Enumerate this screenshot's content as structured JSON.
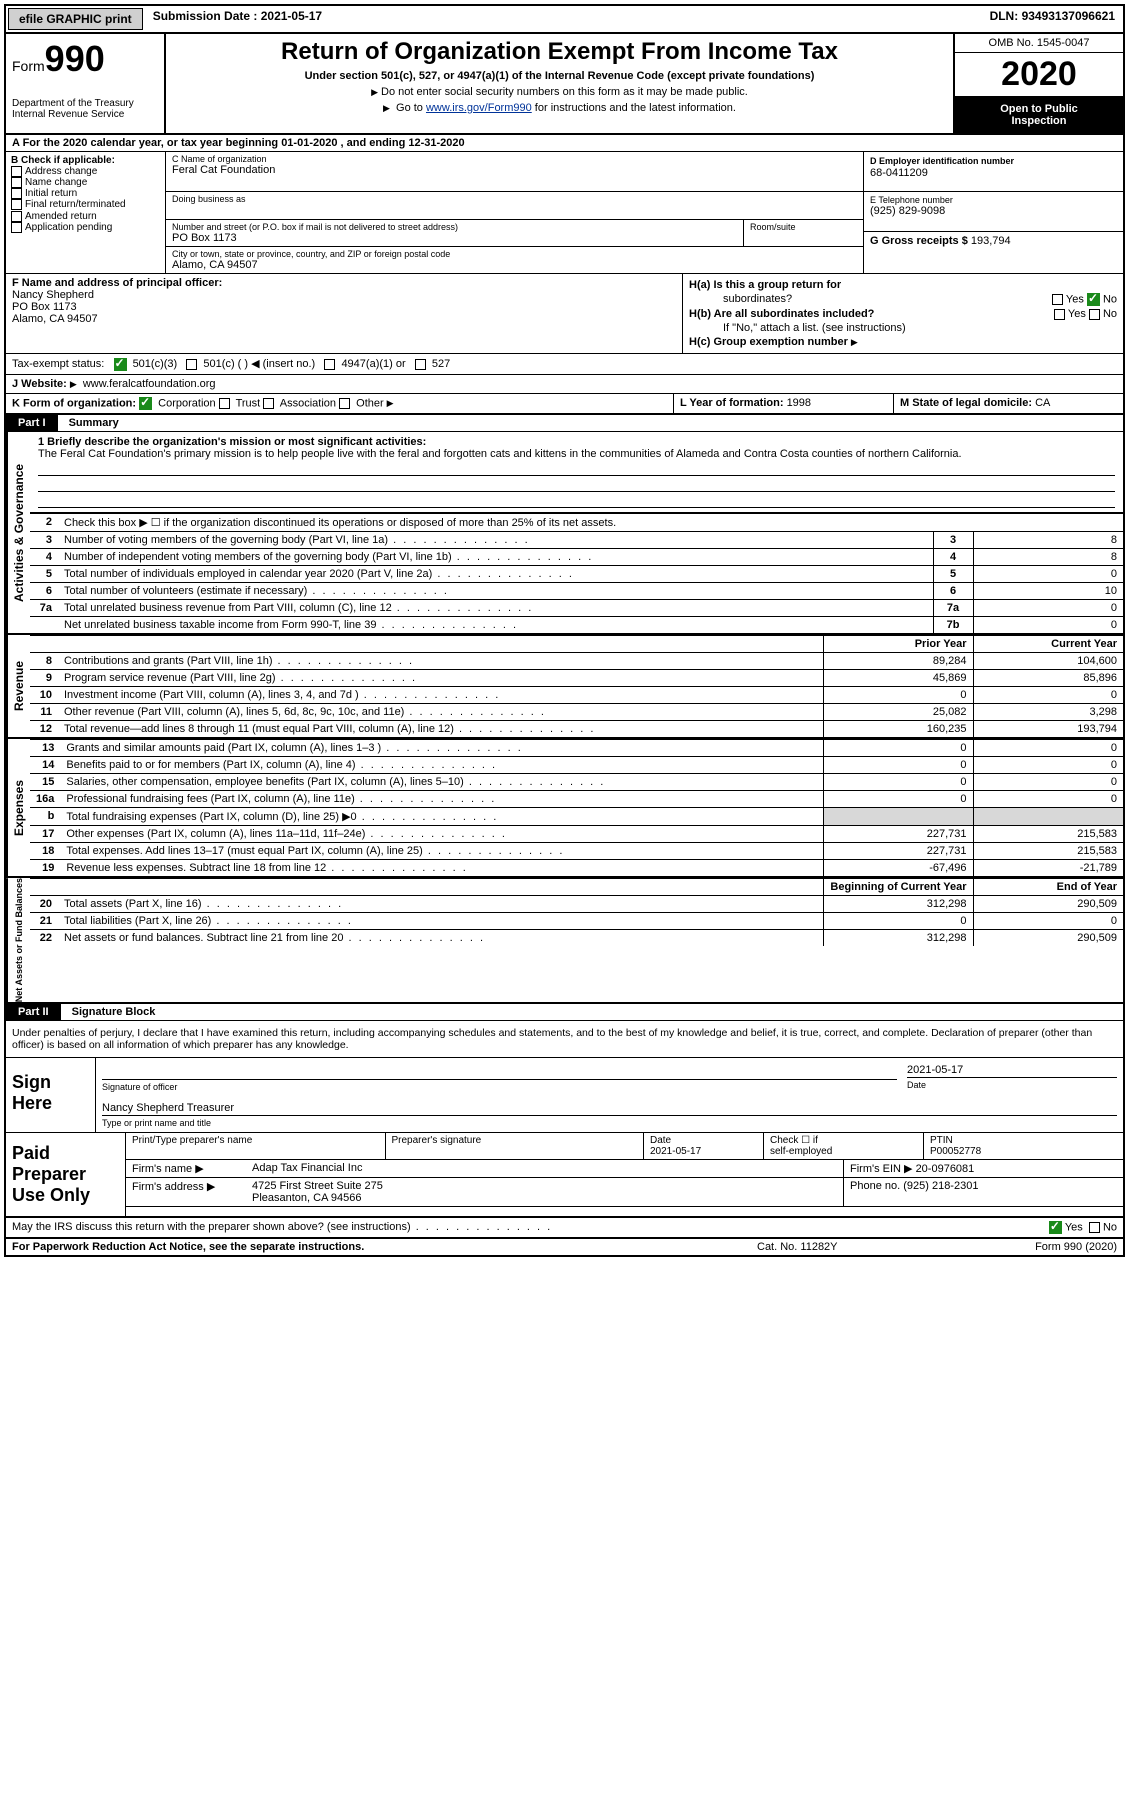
{
  "topbar": {
    "efile": "efile GRAPHIC print",
    "submission_label": "Submission Date : ",
    "submission_date": "2021-05-17",
    "dln_label": "DLN: ",
    "dln": "93493137096621"
  },
  "header": {
    "form_word": "Form",
    "form_num": "990",
    "dept1": "Department of the Treasury",
    "dept2": "Internal Revenue Service",
    "title": "Return of Organization Exempt From Income Tax",
    "subtitle": "Under section 501(c), 527, or 4947(a)(1) of the Internal Revenue Code (except private foundations)",
    "note1": "Do not enter social security numbers on this form as it may be made public.",
    "note2_pre": "Go to ",
    "note2_link": "www.irs.gov/Form990",
    "note2_post": " for instructions and the latest information.",
    "omb": "OMB No. 1545-0047",
    "year": "2020",
    "open1": "Open to Public",
    "open2": "Inspection"
  },
  "line_a": "A  For the 2020 calendar year, or tax year beginning 01-01-2020     , and ending 12-31-2020",
  "box_b": {
    "label": "B Check if applicable:",
    "opts": [
      "Address change",
      "Name change",
      "Initial return",
      "Final return/terminated",
      "Amended return",
      "Application pending"
    ]
  },
  "box_c": {
    "lbl_name": "C Name of organization",
    "org_name": "Feral Cat Foundation",
    "lbl_dba": "Doing business as",
    "lbl_street": "Number and street (or P.O. box if mail is not delivered to street address)",
    "street": "PO Box 1173",
    "lbl_room": "Room/suite",
    "lbl_city": "City or town, state or province, country, and ZIP or foreign postal code",
    "city": "Alamo, CA  94507"
  },
  "box_d": {
    "lbl": "D Employer identification number",
    "ein": "68-0411209"
  },
  "box_e": {
    "lbl": "E Telephone number",
    "phone": "(925) 829-9098"
  },
  "box_g": {
    "lbl": "G Gross receipts $ ",
    "val": "193,794"
  },
  "box_f": {
    "lbl": "F  Name and address of principal officer:",
    "name": "Nancy Shepherd",
    "street": "PO Box 1173",
    "city": "Alamo, CA  94507"
  },
  "box_h": {
    "ha1": "H(a)  Is this a group return for",
    "ha2": "subordinates?",
    "hb1": "H(b)  Are all subordinates included?",
    "hb_note": "If \"No,\" attach a list. (see instructions)",
    "hc": "H(c)  Group exemption number",
    "yes": "Yes",
    "no": "No"
  },
  "tax_status": {
    "lbl": "Tax-exempt status:",
    "c3": "501(c)(3)",
    "c": "501(c) (  )",
    "insert": "(insert no.)",
    "a1": "4947(a)(1) or",
    "s527": "527"
  },
  "row_j": {
    "lbl": "J Website:",
    "val": "www.feralcatfoundation.org"
  },
  "row_k": {
    "lbl": "K Form of organization:",
    "corp": "Corporation",
    "trust": "Trust",
    "assoc": "Association",
    "other": "Other",
    "l_lbl": "L Year of formation: ",
    "l_val": "1998",
    "m_lbl": "M State of legal domicile: ",
    "m_val": "CA"
  },
  "part1": {
    "hdr": "Part I",
    "title": "Summary"
  },
  "mission": {
    "lbl": "1  Briefly describe the organization's mission or most significant activities:",
    "text": "The Feral Cat Foundation's primary mission is to help people live with the feral and forgotten cats and kittens in the communities of Alameda and Contra Costa counties of northern California."
  },
  "line2": "Check this box ▶ ☐ if the organization discontinued its operations or disposed of more than 25% of its net assets.",
  "gov_rows": [
    {
      "n": "3",
      "d": "Number of voting members of the governing body (Part VI, line 1a)",
      "box": "3",
      "v": "8"
    },
    {
      "n": "4",
      "d": "Number of independent voting members of the governing body (Part VI, line 1b)",
      "box": "4",
      "v": "8"
    },
    {
      "n": "5",
      "d": "Total number of individuals employed in calendar year 2020 (Part V, line 2a)",
      "box": "5",
      "v": "0"
    },
    {
      "n": "6",
      "d": "Total number of volunteers (estimate if necessary)",
      "box": "6",
      "v": "10"
    },
    {
      "n": "7a",
      "d": "Total unrelated business revenue from Part VIII, column (C), line 12",
      "box": "7a",
      "v": "0"
    },
    {
      "n": "",
      "d": "Net unrelated business taxable income from Form 990-T, line 39",
      "box": "7b",
      "v": "0"
    }
  ],
  "col_hdrs": {
    "prior": "Prior Year",
    "current": "Current Year",
    "begin": "Beginning of Current Year",
    "end": "End of Year"
  },
  "revenue_rows": [
    {
      "n": "8",
      "d": "Contributions and grants (Part VIII, line 1h)",
      "p": "89,284",
      "c": "104,600"
    },
    {
      "n": "9",
      "d": "Program service revenue (Part VIII, line 2g)",
      "p": "45,869",
      "c": "85,896"
    },
    {
      "n": "10",
      "d": "Investment income (Part VIII, column (A), lines 3, 4, and 7d )",
      "p": "0",
      "c": "0"
    },
    {
      "n": "11",
      "d": "Other revenue (Part VIII, column (A), lines 5, 6d, 8c, 9c, 10c, and 11e)",
      "p": "25,082",
      "c": "3,298"
    },
    {
      "n": "12",
      "d": "Total revenue—add lines 8 through 11 (must equal Part VIII, column (A), line 12)",
      "p": "160,235",
      "c": "193,794"
    }
  ],
  "expense_rows": [
    {
      "n": "13",
      "d": "Grants and similar amounts paid (Part IX, column (A), lines 1–3 )",
      "p": "0",
      "c": "0"
    },
    {
      "n": "14",
      "d": "Benefits paid to or for members (Part IX, column (A), line 4)",
      "p": "0",
      "c": "0"
    },
    {
      "n": "15",
      "d": "Salaries, other compensation, employee benefits (Part IX, column (A), lines 5–10)",
      "p": "0",
      "c": "0"
    },
    {
      "n": "16a",
      "d": "Professional fundraising fees (Part IX, column (A), line 11e)",
      "p": "0",
      "c": "0"
    },
    {
      "n": "b",
      "d": "Total fundraising expenses (Part IX, column (D), line 25) ▶0",
      "p": "",
      "c": "",
      "shade": true
    },
    {
      "n": "17",
      "d": "Other expenses (Part IX, column (A), lines 11a–11d, 11f–24e)",
      "p": "227,731",
      "c": "215,583"
    },
    {
      "n": "18",
      "d": "Total expenses. Add lines 13–17 (must equal Part IX, column (A), line 25)",
      "p": "227,731",
      "c": "215,583"
    },
    {
      "n": "19",
      "d": "Revenue less expenses. Subtract line 18 from line 12",
      "p": "-67,496",
      "c": "-21,789"
    }
  ],
  "net_rows": [
    {
      "n": "20",
      "d": "Total assets (Part X, line 16)",
      "p": "312,298",
      "c": "290,509"
    },
    {
      "n": "21",
      "d": "Total liabilities (Part X, line 26)",
      "p": "0",
      "c": "0"
    },
    {
      "n": "22",
      "d": "Net assets or fund balances. Subtract line 21 from line 20",
      "p": "312,298",
      "c": "290,509"
    }
  ],
  "side_labels": {
    "gov": "Activities & Governance",
    "rev": "Revenue",
    "exp": "Expenses",
    "net": "Net Assets or Fund Balances"
  },
  "part2": {
    "hdr": "Part II",
    "title": "Signature Block"
  },
  "sig_decl": "Under penalties of perjury, I declare that I have examined this return, including accompanying schedules and statements, and to the best of my knowledge and belief, it is true, correct, and complete. Declaration of preparer (other than officer) is based on all information of which preparer has any knowledge.",
  "sign": {
    "here": "Sign Here",
    "sig_of": "Signature of officer",
    "date_lbl": "Date",
    "date": "2021-05-17",
    "name": "Nancy Shepherd Treasurer",
    "name_lbl": "Type or print name and title"
  },
  "prep": {
    "title": "Paid Preparer Use Only",
    "h1": "Print/Type preparer's name",
    "h2": "Preparer's signature",
    "h3": "Date",
    "h3v": "2021-05-17",
    "h4a": "Check ☐ if",
    "h4b": "self-employed",
    "h5": "PTIN",
    "h5v": "P00052778",
    "firm_lbl": "Firm's name   ▶",
    "firm": "Adap Tax Financial Inc",
    "ein_lbl": "Firm's EIN ▶ ",
    "ein": "20-0976081",
    "addr_lbl": "Firm's address ▶",
    "addr1": "4725 First Street Suite 275",
    "addr2": "Pleasanton, CA  94566",
    "phone_lbl": "Phone no. ",
    "phone": "(925) 218-2301"
  },
  "irs_q": {
    "q": "May the IRS discuss this return with the preparer shown above? (see instructions)",
    "yes": "Yes",
    "no": "No"
  },
  "footer": {
    "f1": "For Paperwork Reduction Act Notice, see the separate instructions.",
    "f2": "Cat. No. 11282Y",
    "f3": "Form 990 (2020)"
  }
}
